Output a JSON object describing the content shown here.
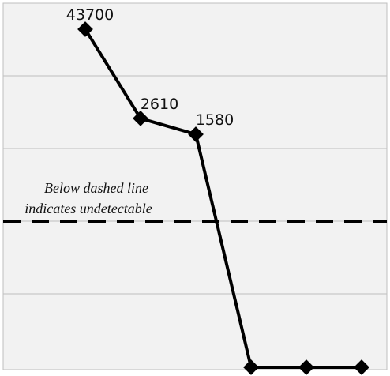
{
  "chart_data": {
    "type": "line",
    "title": "",
    "xlabel": "",
    "ylabel": "",
    "grid": true,
    "x": [
      1,
      2,
      3,
      4,
      5,
      6
    ],
    "series": [
      {
        "values": [
          43700,
          2610,
          1580,
          0,
          0,
          0
        ],
        "data_labels": [
          "43700",
          "2610",
          "1580",
          "",
          "",
          ""
        ],
        "color": "#000000"
      }
    ],
    "annotation": {
      "lines": [
        "Below dashed line",
        "indicates undetectable"
      ]
    },
    "colors": {
      "plot_background": "#f2f2f2",
      "gridline": "#bfbfbf",
      "line": "#000000"
    }
  }
}
